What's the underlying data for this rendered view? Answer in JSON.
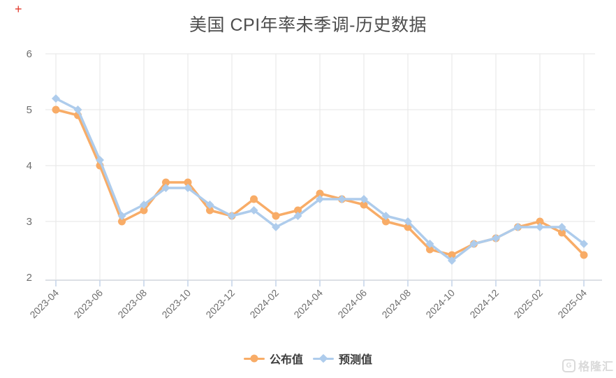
{
  "title": "美国 CPI年率未季调-历史数据",
  "corner_mark": "+",
  "watermark": {
    "logo_letter": "G",
    "text": "格隆汇"
  },
  "legend": [
    {
      "label": "公布值",
      "marker": "circle",
      "color": "#f8ac67"
    },
    {
      "label": "预测值",
      "marker": "diamond",
      "color": "#aeccec"
    }
  ],
  "colors": {
    "published": "#f8ac67",
    "forecast": "#aeccec",
    "gridline": "#e6e6e6",
    "axis_line": "#dce0e5",
    "axis_tick": "#c2d3e8",
    "axis_label": "#6e6e6e",
    "title_text": "#4d4d4d",
    "legend_text": "#3d3d3d",
    "corner_mark": "#e23b2e",
    "watermark": "#dadada"
  },
  "chart_data": {
    "type": "line",
    "title": "美国 CPI年率未季调-历史数据",
    "xlabel": "",
    "ylabel": "",
    "x": [
      "2023-04",
      "2023-05",
      "2023-06",
      "2023-07",
      "2023-08",
      "2023-09",
      "2023-10",
      "2023-11",
      "2023-12",
      "2024-01",
      "2024-02",
      "2024-03",
      "2024-04",
      "2024-05",
      "2024-06",
      "2024-07",
      "2024-08",
      "2024-09",
      "2024-10",
      "2024-11",
      "2024-12",
      "2025-01",
      "2025-02",
      "2025-03",
      "2025-04"
    ],
    "x_tick_labels": [
      "2023-04",
      "2023-06",
      "2023-08",
      "2023-10",
      "2023-12",
      "2024-02",
      "2024-04",
      "2024-06",
      "2024-08",
      "2024-10",
      "2024-12",
      "2025-02",
      "2025-04"
    ],
    "series": [
      {
        "name": "公布值",
        "marker": "circle",
        "color": "#f8ac67",
        "values": [
          5.0,
          4.9,
          4.0,
          3.0,
          3.2,
          3.7,
          3.7,
          3.2,
          3.1,
          3.4,
          3.1,
          3.2,
          3.5,
          3.4,
          3.3,
          3.0,
          2.9,
          2.5,
          2.4,
          2.6,
          2.7,
          2.9,
          3.0,
          2.8,
          2.4
        ]
      },
      {
        "name": "预测值",
        "marker": "diamond",
        "color": "#aeccec",
        "values": [
          5.2,
          5.0,
          4.1,
          3.1,
          3.3,
          3.6,
          3.6,
          3.3,
          3.1,
          3.2,
          2.9,
          3.1,
          3.4,
          3.4,
          3.4,
          3.1,
          3.0,
          2.6,
          2.3,
          2.6,
          2.7,
          2.9,
          2.9,
          2.9,
          2.6
        ]
      }
    ],
    "ylim": [
      2,
      6
    ],
    "yticks": [
      2,
      3,
      4,
      5,
      6
    ],
    "grid": true,
    "legend_position": "bottom"
  }
}
